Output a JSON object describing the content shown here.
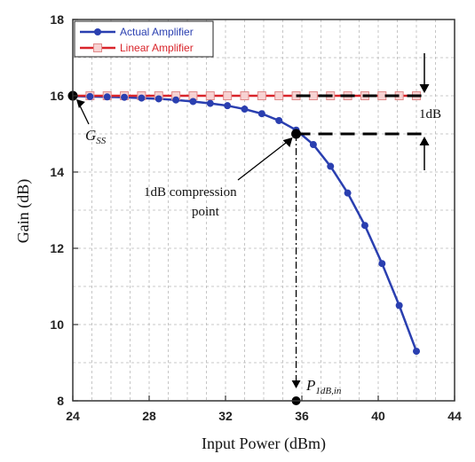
{
  "chart_data": {
    "type": "line",
    "xlabel": "Input Power (dBm)",
    "ylabel": "Gain (dB)",
    "xlim": [
      24,
      44
    ],
    "ylim": [
      8,
      18
    ],
    "xticks": [
      24,
      28,
      32,
      36,
      40,
      44
    ],
    "yticks": [
      8,
      10,
      12,
      14,
      16,
      18
    ],
    "grid": true,
    "legend_position": "top-left",
    "series": [
      {
        "name": "Actual Amplifier",
        "color": "#2a3fb0",
        "marker": "filled-circle",
        "x": [
          24.0,
          24.9,
          25.8,
          26.7,
          27.6,
          28.5,
          29.4,
          30.3,
          31.2,
          32.1,
          33.0,
          33.9,
          34.8,
          35.7,
          36.6,
          37.5,
          38.4,
          39.3,
          40.2,
          41.1,
          42.0
        ],
        "y": [
          15.99,
          15.98,
          15.97,
          15.96,
          15.94,
          15.92,
          15.89,
          15.85,
          15.8,
          15.74,
          15.65,
          15.53,
          15.35,
          15.1,
          14.72,
          14.15,
          13.45,
          12.6,
          11.6,
          10.5,
          9.3
        ]
      },
      {
        "name": "Linear Amplifier",
        "color": "#d9252b",
        "marker": "open-square",
        "x": [
          24.0,
          24.9,
          25.8,
          26.7,
          27.6,
          28.5,
          29.4,
          30.3,
          31.2,
          32.1,
          33.0,
          33.9,
          34.8,
          35.7,
          36.6,
          37.5,
          38.4,
          39.3,
          40.2,
          41.1,
          42.0
        ],
        "y": [
          16,
          16,
          16,
          16,
          16,
          16,
          16,
          16,
          16,
          16,
          16,
          16,
          16,
          16,
          16,
          16,
          16,
          16,
          16,
          16,
          16
        ]
      }
    ],
    "annotations": {
      "gss_main": "G",
      "gss_sub": "SS",
      "compression_line1": "1dB compression",
      "compression_line2": "point",
      "delta_label": "1dB",
      "p1db_main": "P",
      "p1db_sub": "1dB,in"
    },
    "key_points": {
      "gss": [
        24,
        16
      ],
      "compression": [
        35.7,
        15
      ],
      "p1db_axis": [
        35.7,
        8
      ]
    }
  }
}
